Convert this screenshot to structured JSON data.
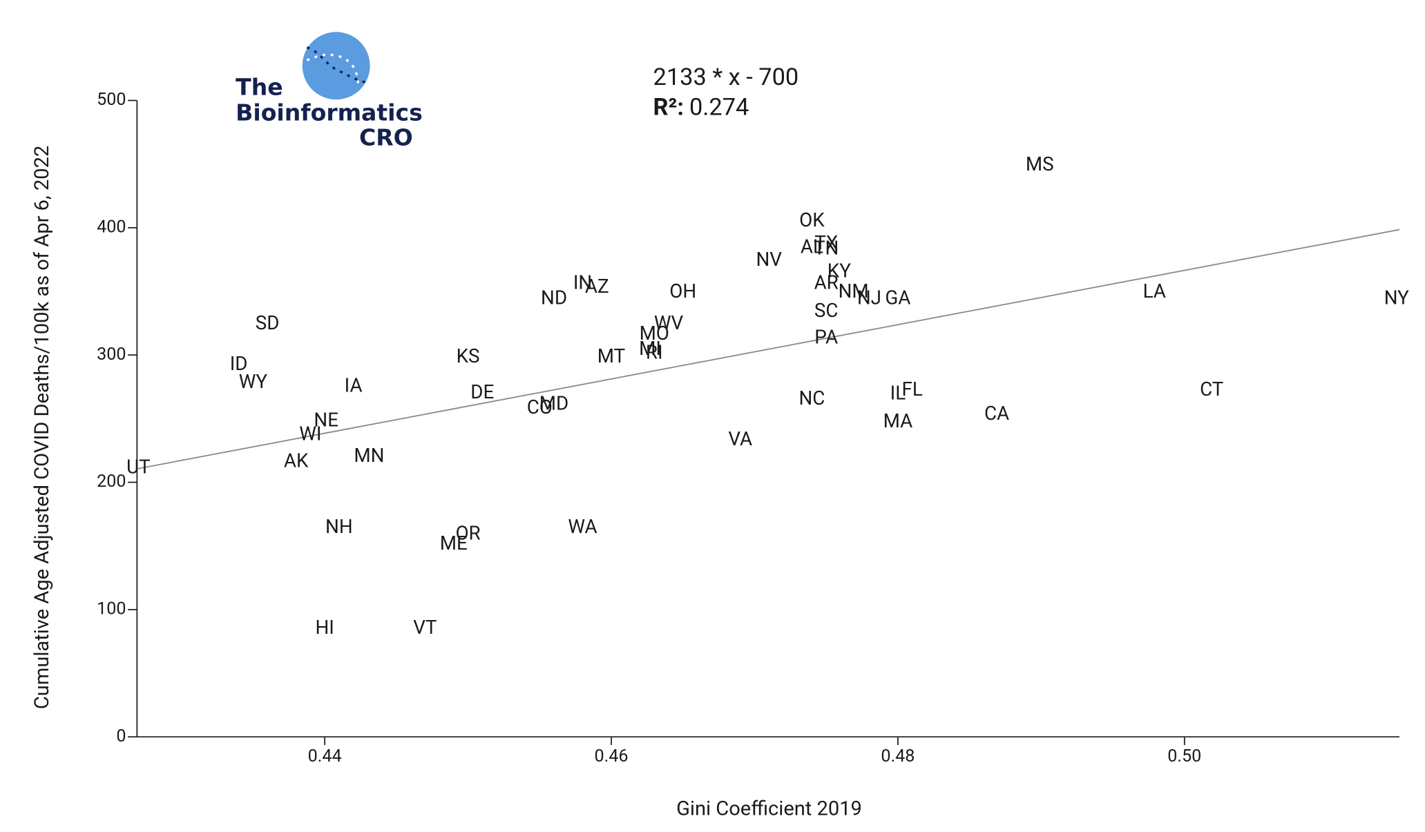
{
  "chart_data": {
    "type": "scatter",
    "x_label": "Gini Coefficient 2019",
    "y_label": "Cumulative Age Adjusted COVID Deaths/100k as of Apr 6, 2022",
    "labels": [
      "UT",
      "SD",
      "ID",
      "WY",
      "IA",
      "NE",
      "WI",
      "AK",
      "MN",
      "NH",
      "HI",
      "VT",
      "ME",
      "OR",
      "WA",
      "KS",
      "DE",
      "CO",
      "MD",
      "ND",
      "IN",
      "AZ",
      "MT",
      "OH",
      "MO",
      "WV",
      "RI",
      "MI",
      "NV",
      "VA",
      "OK",
      "TX",
      "AL",
      "TN",
      "KY",
      "AR",
      "NM",
      "NJ",
      "GA",
      "SC",
      "PA",
      "NC",
      "IL",
      "FL",
      "MA",
      "CA",
      "MS",
      "LA",
      "CT",
      "NY"
    ],
    "x": [
      0.427,
      0.436,
      0.434,
      0.435,
      0.442,
      0.4401,
      0.439,
      0.438,
      0.4431,
      0.441,
      0.44,
      0.447,
      0.449,
      0.45,
      0.458,
      0.45,
      0.451,
      0.455,
      0.456,
      0.456,
      0.458,
      0.459,
      0.46,
      0.465,
      0.463,
      0.464,
      0.463,
      0.4627,
      0.471,
      0.469,
      0.474,
      0.475,
      0.474,
      0.475,
      0.4759,
      0.475,
      0.4769,
      0.478,
      0.48,
      0.475,
      0.475,
      0.474,
      0.48,
      0.481,
      0.48,
      0.4869,
      0.4899,
      0.4979,
      0.5019,
      0.5148
    ],
    "values": [
      211,
      324,
      292,
      278,
      275,
      248,
      237,
      216,
      220,
      164,
      85,
      85,
      151,
      159,
      164,
      298,
      270,
      258,
      261,
      344,
      356,
      353,
      298,
      349,
      316,
      324,
      301,
      304,
      374,
      233,
      405,
      387,
      384,
      383,
      365,
      356,
      349,
      344,
      344,
      334,
      313,
      265,
      269,
      272,
      247,
      253,
      449,
      349,
      272,
      344
    ],
    "color": "#1a1a1a",
    "xlim": [
      0.4269,
      0.515
    ],
    "ylim": [
      0,
      500
    ],
    "xticks": [
      0.44,
      0.46,
      0.48,
      {
        "value": 0.5,
        "label": "0.50"
      }
    ],
    "yticks": [
      0,
      100,
      200,
      300,
      400,
      500
    ],
    "fit": {
      "slope": 2133,
      "intercept": -700,
      "color": "#8c8c8c"
    },
    "fit_label": "2133 * x - 700",
    "r2_label": "R²:",
    "r2": 0.274
  },
  "logo": {
    "line1": "The",
    "line2": "Bioinformatics",
    "line3": "CRO"
  }
}
